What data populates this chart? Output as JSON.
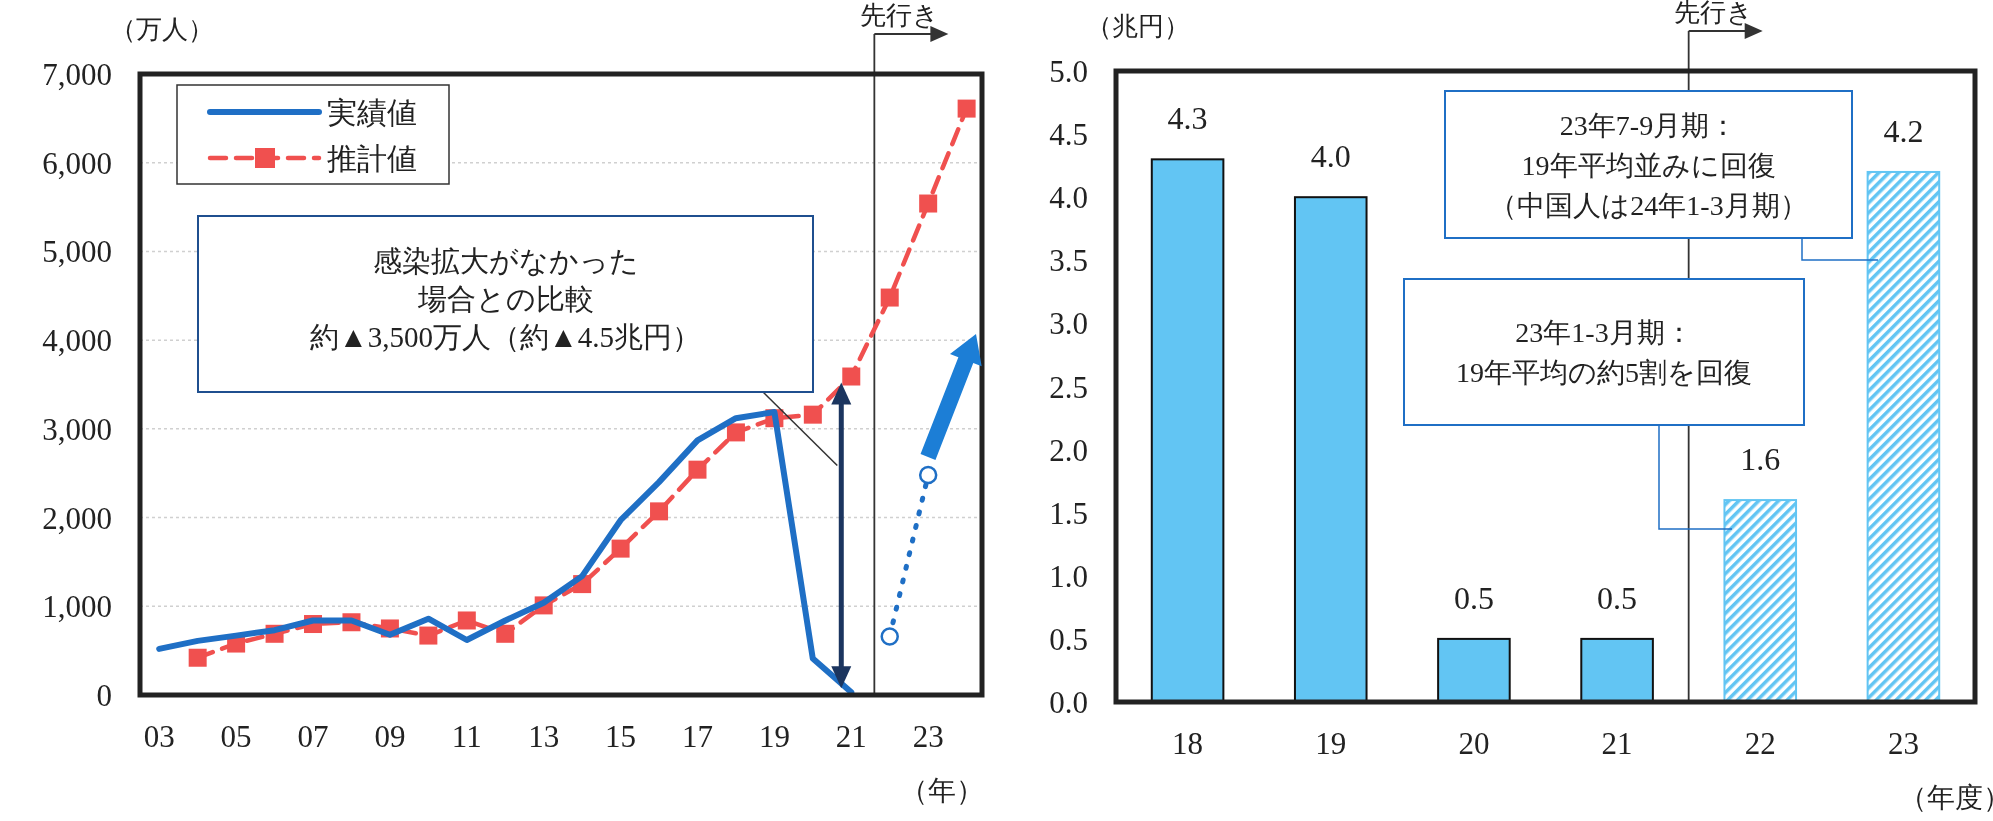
{
  "chart_data": [
    {
      "type": "line",
      "xlabel": "（年）",
      "ylabel": "（万人）",
      "legend": "top left",
      "grid": "y",
      "xlim": [
        2002.5,
        2024.4
      ],
      "xticks": [
        {
          "value": 2003,
          "label": "03"
        },
        {
          "value": 2005,
          "label": "05"
        },
        {
          "value": 2007,
          "label": "07"
        },
        {
          "value": 2009,
          "label": "09"
        },
        {
          "value": 2011,
          "label": "11"
        },
        {
          "value": 2013,
          "label": "13"
        },
        {
          "value": 2015,
          "label": "15"
        },
        {
          "value": 2017,
          "label": "17"
        },
        {
          "value": 2019,
          "label": "19"
        },
        {
          "value": 2021,
          "label": "21"
        },
        {
          "value": 2023,
          "label": "23"
        }
      ],
      "ylim": [
        0,
        7000
      ],
      "yticks": [
        0,
        {
          "value": 1000,
          "label": "1,000"
        },
        {
          "value": 2000,
          "label": "2,000"
        },
        {
          "value": 3000,
          "label": "3,000"
        },
        {
          "value": 4000,
          "label": "4,000"
        },
        {
          "value": 5000,
          "label": "5,000"
        },
        {
          "value": 6000,
          "label": "6,000"
        },
        {
          "value": 7000,
          "label": "7,000"
        }
      ],
      "series": [
        {
          "name": "実績値",
          "color": "#1f6fc5",
          "line_style": "solid",
          "marker": "none",
          "x": [
            2003,
            2004,
            2005,
            2006,
            2007,
            2008,
            2009,
            2010,
            2011,
            2012,
            2013,
            2014,
            2015,
            2016,
            2017,
            2018,
            2019,
            2020,
            2021
          ],
          "values": [
            520,
            610,
            670,
            730,
            840,
            840,
            680,
            860,
            620,
            840,
            1040,
            1340,
            1970,
            2400,
            2870,
            3120,
            3190,
            410,
            30
          ]
        },
        {
          "name": "推計値",
          "color": "#f0504f",
          "line_style": "dashed",
          "marker": "square",
          "x": [
            2004,
            2005,
            2006,
            2007,
            2008,
            2009,
            2010,
            2011,
            2012,
            2013,
            2014,
            2015,
            2016,
            2017,
            2018,
            2019,
            2020,
            2021,
            2022,
            2023,
            2024
          ],
          "values": [
            420,
            580,
            690,
            800,
            820,
            750,
            670,
            840,
            690,
            1010,
            1250,
            1650,
            2070,
            2540,
            2960,
            3120,
            3160,
            3590,
            4480,
            5540,
            6610
          ]
        },
        {
          "color": "#1f6fc5",
          "line_style": "dotted",
          "marker": "circle",
          "x": [
            2022,
            2023
          ],
          "values": [
            660,
            2480
          ]
        }
      ],
      "ref_lines": [
        {
          "axis": "x",
          "value": 2021.6,
          "label": "先行き",
          "color": "#333333",
          "line_style": "solid"
        }
      ],
      "annotations": [
        "感染拡大がなかった",
        "場合との比較",
        "約▲3,500万人（約▲4.5兆円）"
      ]
    },
    {
      "type": "bar",
      "xlabel": "（年度）",
      "ylabel": "（兆円）",
      "legend": false,
      "grid": false,
      "x": [
        18,
        19,
        20,
        21,
        22,
        23
      ],
      "xlim": [
        17.5,
        23.5
      ],
      "xticks": [
        18,
        19,
        20,
        21,
        22,
        23
      ],
      "ylim": [
        0,
        5
      ],
      "yticks": [
        {
          "value": 0,
          "label": "0.0"
        },
        {
          "value": 0.5,
          "label": "0.5"
        },
        {
          "value": 1,
          "label": "1.0"
        },
        {
          "value": 1.5,
          "label": "1.5"
        },
        {
          "value": 2,
          "label": "2.0"
        },
        {
          "value": 2.5,
          "label": "2.5"
        },
        {
          "value": 3,
          "label": "3.0"
        },
        {
          "value": 3.5,
          "label": "3.5"
        },
        {
          "value": 4,
          "label": "4.0"
        },
        {
          "value": 4.5,
          "label": "4.5"
        },
        {
          "value": 5,
          "label": "5.0"
        }
      ],
      "values": [
        4.3,
        4.0,
        0.5,
        0.5,
        1.6,
        4.2
      ],
      "value_labels": [
        "4.3",
        "4.0",
        "0.5",
        "0.5",
        "1.6",
        "4.2"
      ],
      "colors": [
        "#62c5f3",
        "#62c5f3",
        "#62c5f3",
        "#62c5f3",
        "#62c5f3",
        "#62c5f3"
      ],
      "ref_lines": [
        {
          "axis": "x",
          "value": 21.5,
          "label": "先行き",
          "color": "#333333",
          "line_style": "solid"
        }
      ],
      "annotations": [
        "23年7-9月期：",
        "19年平均並みに回復",
        "（中国人は24年1-3月期）",
        "23年1-3月期：",
        "19年平均の約5割を回復"
      ]
    }
  ]
}
